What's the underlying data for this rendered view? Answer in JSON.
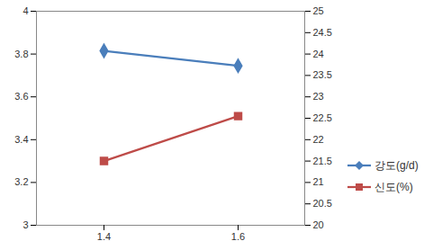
{
  "chart_data": {
    "type": "line",
    "categories": [
      "1.4",
      "1.6"
    ],
    "series": [
      {
        "name": "강도(g/d)",
        "color": "#4a7ebb",
        "marker": "diamond",
        "values": [
          3.815,
          3.745
        ]
      },
      {
        "name": "신도(%)",
        "color": "#be4b48",
        "marker": "square",
        "axis": "y2",
        "values": [
          21.5,
          22.55
        ]
      }
    ],
    "ylim": [
      3,
      4
    ],
    "yticks": [
      3,
      3.2,
      3.4,
      3.6,
      3.8,
      4
    ],
    "y2lim": [
      20,
      25
    ],
    "y2ticks": [
      20,
      20.5,
      21,
      21.5,
      22,
      22.5,
      23,
      23.5,
      24,
      24.5,
      25
    ],
    "grid": false,
    "legend": "right"
  }
}
